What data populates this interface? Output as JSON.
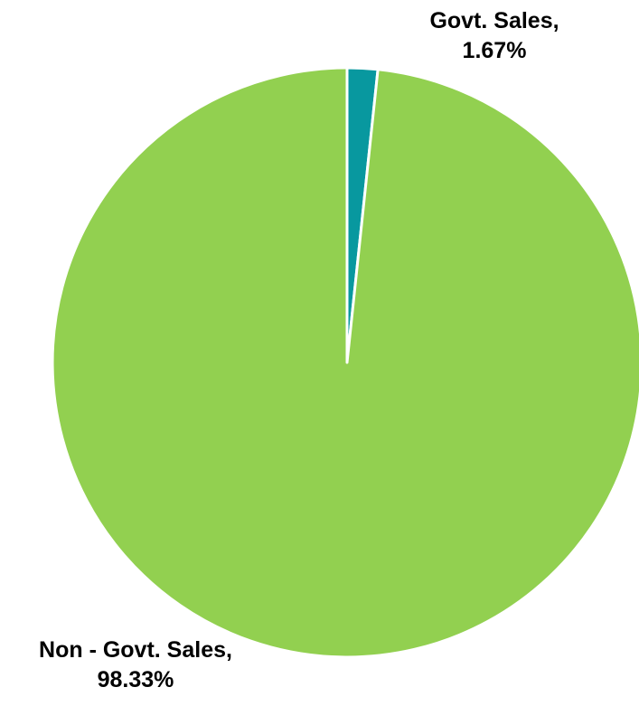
{
  "chart_data": {
    "type": "pie",
    "title": "",
    "slices": [
      {
        "label": "Govt. Sales",
        "value": 1.67,
        "color": "#08989F",
        "display_name": "Govt. Sales,",
        "display_value": "1.67%"
      },
      {
        "label": "Non - Govt. Sales",
        "value": 98.33,
        "color": "#92D050",
        "display_name": "Non - Govt. Sales,",
        "display_value": "98.33%"
      }
    ],
    "start_angle": "12 o'clock",
    "direction": "clockwise",
    "slice_border_color": "#FFFFFF"
  }
}
